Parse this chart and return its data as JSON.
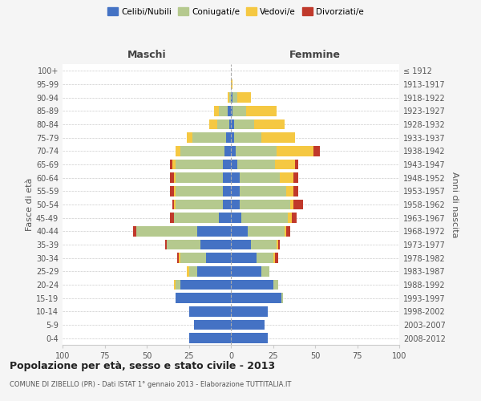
{
  "age_groups": [
    "0-4",
    "5-9",
    "10-14",
    "15-19",
    "20-24",
    "25-29",
    "30-34",
    "35-39",
    "40-44",
    "45-49",
    "50-54",
    "55-59",
    "60-64",
    "65-69",
    "70-74",
    "75-79",
    "80-84",
    "85-89",
    "90-94",
    "95-99",
    "100+"
  ],
  "birth_years": [
    "2008-2012",
    "2003-2007",
    "1998-2002",
    "1993-1997",
    "1988-1992",
    "1983-1987",
    "1978-1982",
    "1973-1977",
    "1968-1972",
    "1963-1967",
    "1958-1962",
    "1953-1957",
    "1948-1952",
    "1943-1947",
    "1938-1942",
    "1933-1937",
    "1928-1932",
    "1923-1927",
    "1918-1922",
    "1913-1917",
    "≤ 1912"
  ],
  "colors": {
    "celibi": "#4472C4",
    "coniugati": "#b5c98e",
    "vedovi": "#f5c842",
    "divorziati": "#c0392b"
  },
  "maschi": {
    "celibi": [
      25,
      22,
      25,
      33,
      30,
      20,
      15,
      18,
      20,
      7,
      5,
      5,
      5,
      5,
      4,
      3,
      1,
      2,
      0,
      0,
      0
    ],
    "coniugati": [
      0,
      0,
      0,
      0,
      3,
      5,
      15,
      20,
      36,
      27,
      28,
      28,
      28,
      28,
      26,
      20,
      7,
      5,
      1,
      0,
      0
    ],
    "vedovi": [
      0,
      0,
      0,
      0,
      1,
      1,
      1,
      0,
      0,
      0,
      1,
      1,
      1,
      2,
      3,
      3,
      5,
      3,
      1,
      0,
      0
    ],
    "divorziati": [
      0,
      0,
      0,
      0,
      0,
      0,
      1,
      1,
      2,
      2,
      1,
      2,
      2,
      1,
      0,
      0,
      0,
      0,
      0,
      0,
      0
    ]
  },
  "femmine": {
    "celibi": [
      22,
      20,
      22,
      30,
      25,
      18,
      15,
      12,
      10,
      6,
      5,
      5,
      5,
      4,
      3,
      2,
      2,
      1,
      1,
      0,
      0
    ],
    "coniugati": [
      0,
      0,
      0,
      1,
      3,
      5,
      10,
      15,
      22,
      28,
      30,
      28,
      24,
      22,
      24,
      16,
      12,
      8,
      3,
      0,
      0
    ],
    "vedovi": [
      0,
      0,
      0,
      0,
      0,
      0,
      1,
      1,
      1,
      2,
      2,
      4,
      8,
      12,
      22,
      20,
      18,
      18,
      8,
      1,
      0
    ],
    "divorziati": [
      0,
      0,
      0,
      0,
      0,
      0,
      2,
      1,
      2,
      3,
      6,
      3,
      3,
      2,
      4,
      0,
      0,
      0,
      0,
      0,
      0
    ]
  },
  "xlim": 100,
  "xticks": [
    -100,
    -75,
    -50,
    -25,
    0,
    25,
    50,
    75,
    100
  ],
  "title": "Popolazione per età, sesso e stato civile - 2013",
  "subtitle": "COMUNE DI ZIBELLO (PR) - Dati ISTAT 1° gennaio 2013 - Elaborazione TUTTITALIA.IT",
  "ylabel_left": "Fasce di età",
  "ylabel_right": "Anni di nascita",
  "xlabel_maschi": "Maschi",
  "xlabel_femmine": "Femmine",
  "legend_labels": [
    "Celibi/Nubili",
    "Coniugati/e",
    "Vedovi/e",
    "Divorziati/e"
  ],
  "bg_color": "#f5f5f5",
  "bar_bg": "#ffffff"
}
